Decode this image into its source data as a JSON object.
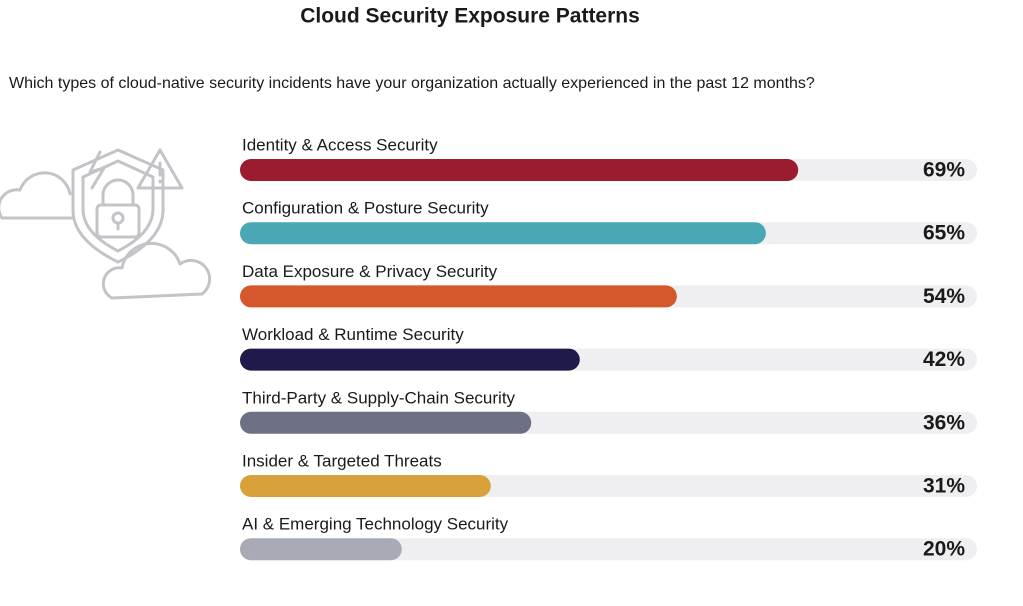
{
  "chart_data": {
    "type": "bar",
    "orientation": "horizontal",
    "title": "Cloud Security Exposure Patterns",
    "subtitle": "Which types of cloud-native security incidents have your organization actually experienced in the past 12 months?",
    "categories": [
      "Identity & Access Security",
      "Configuration & Posture Security",
      "Data Exposure & Privacy Security",
      "Workload & Runtime Security",
      "Third-Party & Supply-Chain Security",
      "Insider & Targeted Threats",
      "AI & Emerging Technology Security"
    ],
    "values": [
      69,
      65,
      54,
      42,
      36,
      31,
      20
    ],
    "value_labels": [
      "69%",
      "65%",
      "54%",
      "42%",
      "36%",
      "31%",
      "20%"
    ],
    "colors": [
      "#9b1c2e",
      "#4aa8b5",
      "#d4582b",
      "#1e1b4b",
      "#6e7085",
      "#d9a13a",
      "#a8aab5"
    ]
  }
}
